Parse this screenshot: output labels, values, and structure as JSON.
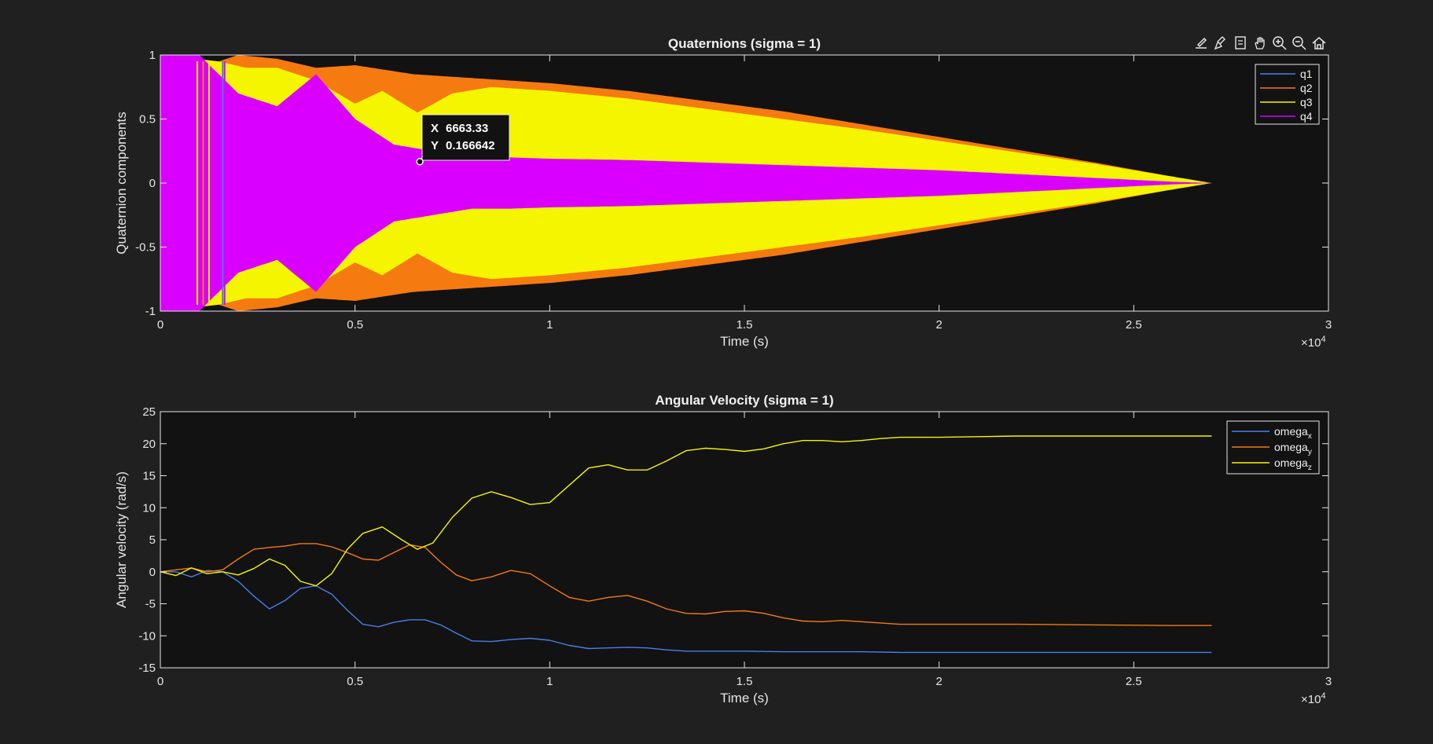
{
  "colors": {
    "background": "#202020",
    "axes_bg": "#121212",
    "axis": "#e6e6e6",
    "q1": "#4a7ee8",
    "q2": "#f57a10",
    "q3": "#f5f500",
    "q4": "#d900ff"
  },
  "toolbar": {
    "icons": [
      "export-icon",
      "brush-icon",
      "datatip-icon",
      "pan-icon",
      "zoom-in-icon",
      "zoom-out-icon",
      "home-icon"
    ]
  },
  "chart_data": [
    {
      "type": "area",
      "title": "Quaternions (sigma = 1)",
      "xlabel": "Time (s)",
      "ylabel": "Quaternion components",
      "x_exponent": "×10",
      "x_exponent_power": "4",
      "xlim": [
        0,
        30000
      ],
      "ylim": [
        -1,
        1
      ],
      "xticks": [
        0,
        5000,
        10000,
        15000,
        20000,
        25000,
        30000
      ],
      "xtick_labels": [
        "0",
        "0.5",
        "1",
        "1.5",
        "2",
        "2.5",
        "3"
      ],
      "yticks": [
        1,
        0.5,
        0,
        -0.5,
        -1
      ],
      "ytick_labels": [
        "1",
        "0.5",
        "0",
        "-0.5",
        "-1"
      ],
      "legend_position": "top-right",
      "series": [
        {
          "name": "q1",
          "color": "#4a7ee8",
          "envelope_x": [
            0,
            1000,
            1600,
            2500,
            27000
          ],
          "envelope": [
            0.95,
            0.9,
            0.95,
            0.6,
            0
          ]
        },
        {
          "name": "q2",
          "color": "#f57a10",
          "envelope_x": [
            0,
            1500,
            2000,
            3000,
            4000,
            5000,
            6500,
            8000,
            10000,
            12000,
            14000,
            16000,
            18000,
            20000,
            22000,
            24000,
            26000,
            27000
          ],
          "envelope": [
            1.0,
            0.95,
            1.0,
            0.97,
            0.9,
            0.92,
            0.85,
            0.82,
            0.78,
            0.72,
            0.64,
            0.56,
            0.46,
            0.36,
            0.26,
            0.16,
            0.05,
            0
          ]
        },
        {
          "name": "q3",
          "color": "#f5f500",
          "envelope_x": [
            0,
            1500,
            2200,
            3000,
            4000,
            5000,
            5700,
            6600,
            7500,
            8500,
            10000,
            12000,
            14000,
            16000,
            18000,
            20000,
            22000,
            24000,
            26000,
            27000
          ],
          "envelope": [
            1.0,
            0.95,
            0.9,
            0.9,
            0.8,
            0.62,
            0.72,
            0.55,
            0.7,
            0.75,
            0.72,
            0.66,
            0.58,
            0.5,
            0.42,
            0.33,
            0.24,
            0.15,
            0.05,
            0
          ]
        },
        {
          "name": "q4",
          "color": "#d900ff",
          "envelope_x": [
            0,
            1000,
            2000,
            3000,
            4000,
            5000,
            6000,
            7000,
            8000,
            9000,
            10000,
            12000,
            14000,
            16000,
            18000,
            20000,
            22000,
            24000,
            26000,
            27000
          ],
          "envelope": [
            1.0,
            1.0,
            0.7,
            0.6,
            0.85,
            0.5,
            0.3,
            0.25,
            0.2,
            0.2,
            0.19,
            0.18,
            0.16,
            0.14,
            0.12,
            0.1,
            0.07,
            0.04,
            0.01,
            0
          ]
        }
      ],
      "datatip": {
        "x_label": "X",
        "x_value": "6663.33",
        "y_label": "Y",
        "y_value": "0.166642",
        "x": 6663.33,
        "y": 0.166642
      }
    },
    {
      "type": "line",
      "title": "Angular Velocity (sigma = 1)",
      "xlabel": "Time (s)",
      "ylabel": "Angular velocity (rad/s)",
      "x_exponent": "×10",
      "x_exponent_power": "4",
      "xlim": [
        0,
        30000
      ],
      "ylim": [
        -15,
        25
      ],
      "xticks": [
        0,
        5000,
        10000,
        15000,
        20000,
        25000,
        30000
      ],
      "xtick_labels": [
        "0",
        "0.5",
        "1",
        "1.5",
        "2",
        "2.5",
        "3"
      ],
      "yticks": [
        25,
        20,
        15,
        10,
        5,
        0,
        -5,
        -10,
        -15
      ],
      "ytick_labels": [
        "25",
        "20",
        "15",
        "10",
        "5",
        "0",
        "-5",
        "-10",
        "-15"
      ],
      "legend_position": "top-right",
      "series": [
        {
          "name": "omega",
          "sub": "x",
          "color": "#4a7ee8",
          "x": [
            0,
            400,
            800,
            1200,
            1600,
            2000,
            2400,
            2800,
            3200,
            3600,
            4000,
            4400,
            4800,
            5200,
            5600,
            6000,
            6400,
            6800,
            7200,
            7600,
            8000,
            8500,
            9000,
            9500,
            10000,
            10500,
            11000,
            11500,
            12000,
            12500,
            13000,
            13500,
            14000,
            14500,
            15000,
            16000,
            17000,
            18000,
            19000,
            20000,
            22000,
            24000,
            26000,
            27000
          ],
          "y": [
            0,
            0,
            -0.8,
            0.2,
            0,
            -1.5,
            -3.8,
            -5.8,
            -4.5,
            -2.6,
            -2.2,
            -3.5,
            -6.0,
            -8.2,
            -8.6,
            -7.9,
            -7.5,
            -7.5,
            -8.3,
            -9.6,
            -10.8,
            -10.9,
            -10.6,
            -10.4,
            -10.7,
            -11.5,
            -12.0,
            -11.9,
            -11.8,
            -11.9,
            -12.2,
            -12.4,
            -12.4,
            -12.4,
            -12.4,
            -12.5,
            -12.5,
            -12.5,
            -12.6,
            -12.6,
            -12.6,
            -12.6,
            -12.6,
            -12.6
          ]
        },
        {
          "name": "omega",
          "sub": "y",
          "color": "#f57a10",
          "x": [
            0,
            400,
            800,
            1200,
            1600,
            2000,
            2400,
            2800,
            3200,
            3600,
            4000,
            4400,
            4800,
            5200,
            5600,
            6000,
            6400,
            6800,
            7200,
            7600,
            8000,
            8500,
            9000,
            9500,
            10000,
            10500,
            11000,
            11500,
            12000,
            12500,
            13000,
            13500,
            14000,
            14500,
            15000,
            15500,
            16000,
            16500,
            17000,
            17500,
            18000,
            19000,
            20000,
            22000,
            24000,
            26000,
            27000
          ],
          "y": [
            0,
            0.3,
            0.6,
            0,
            0.3,
            2.0,
            3.5,
            3.8,
            4.0,
            4.4,
            4.4,
            3.9,
            3.0,
            2.0,
            1.8,
            3.0,
            4.2,
            3.8,
            1.5,
            -0.5,
            -1.4,
            -0.8,
            0.2,
            -0.3,
            -2.2,
            -4.0,
            -4.6,
            -4.0,
            -3.7,
            -4.6,
            -5.8,
            -6.5,
            -6.6,
            -6.2,
            -6.1,
            -6.5,
            -7.2,
            -7.7,
            -7.8,
            -7.6,
            -7.8,
            -8.2,
            -8.2,
            -8.2,
            -8.3,
            -8.4,
            -8.4
          ]
        },
        {
          "name": "omega",
          "sub": "z",
          "color": "#f5f500",
          "x": [
            0,
            400,
            800,
            1200,
            1600,
            2000,
            2400,
            2800,
            3200,
            3600,
            4000,
            4400,
            4800,
            5200,
            5700,
            6200,
            6600,
            7000,
            7500,
            8000,
            8500,
            9000,
            9500,
            10000,
            10500,
            11000,
            11500,
            12000,
            12500,
            13000,
            13500,
            14000,
            14500,
            15000,
            15500,
            16000,
            16500,
            17000,
            17500,
            18000,
            18500,
            19000,
            20000,
            21000,
            22000,
            24000,
            26000,
            27000
          ],
          "y": [
            0,
            -0.6,
            0.6,
            -0.3,
            0,
            -0.5,
            0.5,
            2.0,
            1.0,
            -1.5,
            -2.2,
            -0.3,
            3.5,
            6.0,
            7.0,
            5.0,
            3.5,
            4.5,
            8.5,
            11.5,
            12.5,
            11.6,
            10.5,
            10.8,
            13.5,
            16.2,
            16.7,
            15.9,
            15.9,
            17.3,
            18.9,
            19.3,
            19.1,
            18.8,
            19.2,
            20.0,
            20.5,
            20.5,
            20.3,
            20.5,
            20.8,
            21.0,
            21.0,
            21.1,
            21.2,
            21.2,
            21.2,
            21.2
          ]
        }
      ]
    }
  ]
}
